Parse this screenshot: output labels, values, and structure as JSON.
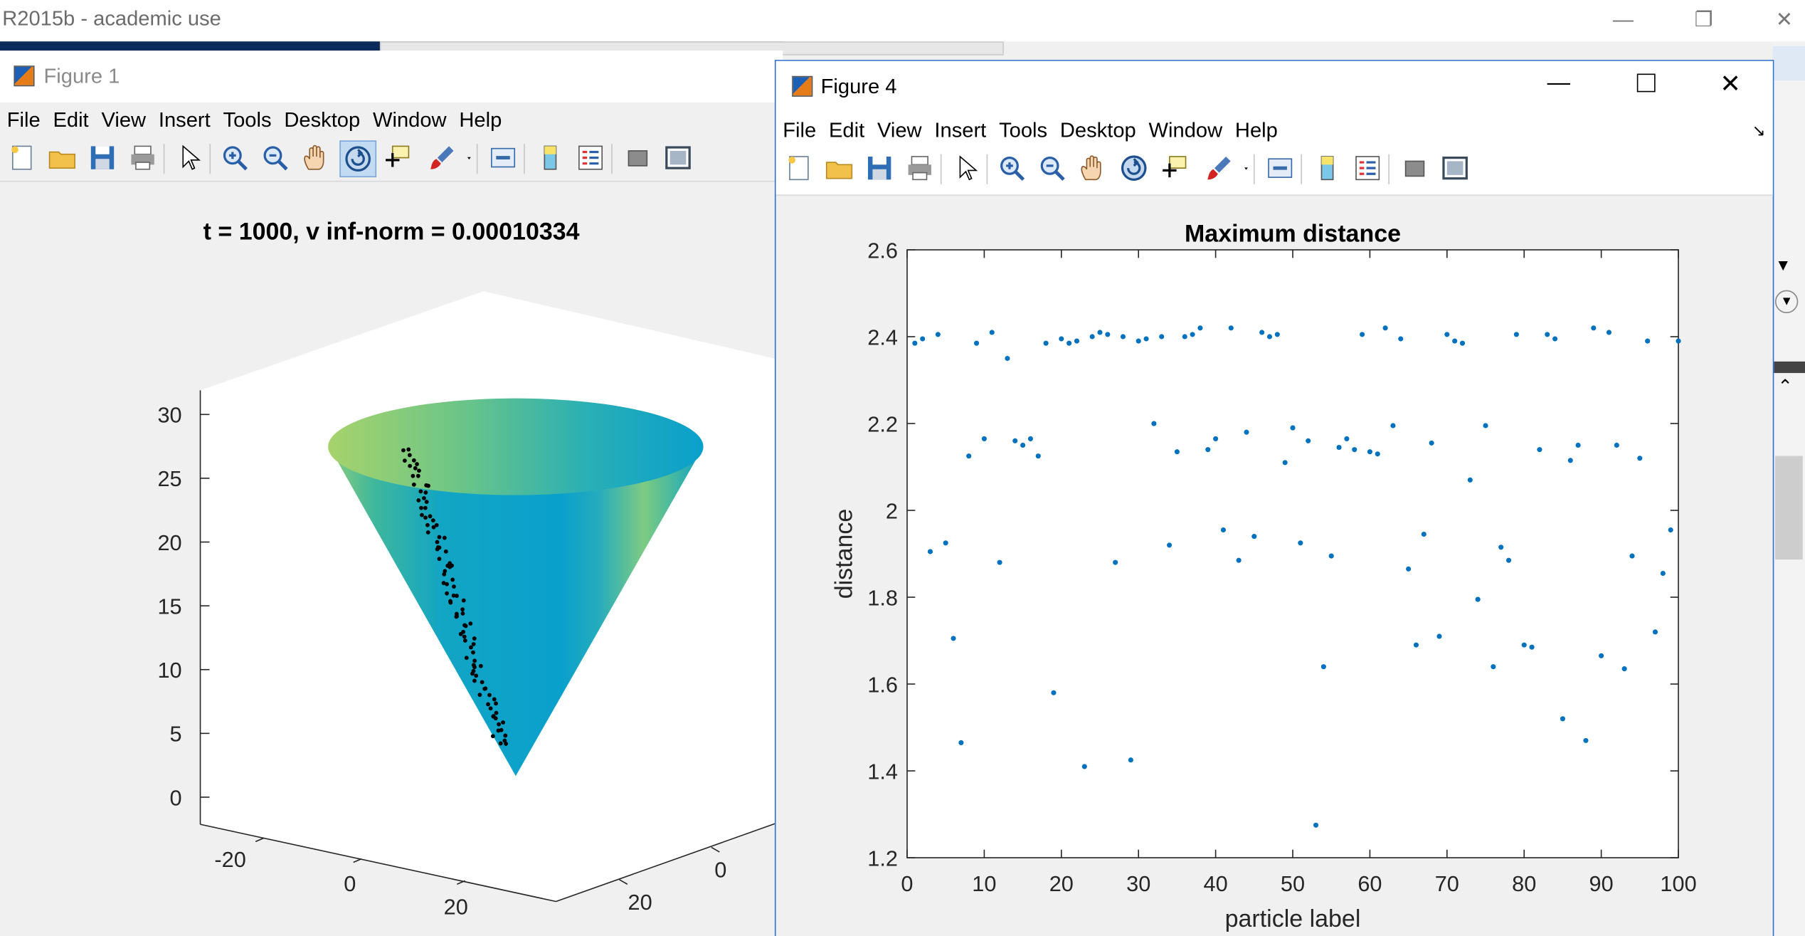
{
  "app": {
    "title": "R2015b - academic use"
  },
  "figure1": {
    "title": "Figure 1",
    "menu": [
      "File",
      "Edit",
      "View",
      "Insert",
      "Tools",
      "Desktop",
      "Window",
      "Help"
    ],
    "plot_title": "t = 1000, v inf-norm = 0.00010334",
    "z_ticks": [
      "30",
      "25",
      "20",
      "15",
      "10",
      "5",
      "0"
    ],
    "x_ticks": [
      "-20",
      "0",
      "20"
    ],
    "y_ticks": [
      "0",
      "20"
    ]
  },
  "figure4": {
    "title": "Figure 4",
    "menu": [
      "File",
      "Edit",
      "View",
      "Insert",
      "Tools",
      "Desktop",
      "Window",
      "Help"
    ]
  },
  "toolbar_icons": [
    "new-figure-icon",
    "open-file-icon",
    "save-icon",
    "print-icon",
    "select-arrow-icon",
    "zoom-in-icon",
    "zoom-out-icon",
    "pan-hand-icon",
    "rotate-3d-icon",
    "data-cursor-icon",
    "brush-icon",
    "brush-dropdown-icon",
    "link-plot-icon",
    "colorbar-icon",
    "legend-icon",
    "hide-plot-tools-icon",
    "show-plot-tools-icon"
  ],
  "chart_data": {
    "type": "scatter",
    "title": "Maximum distance",
    "xlabel": "particle label",
    "ylabel": "distance",
    "xlim": [
      0,
      100
    ],
    "ylim": [
      1.2,
      2.6
    ],
    "x_ticks": [
      0,
      10,
      20,
      30,
      40,
      50,
      60,
      70,
      80,
      90,
      100
    ],
    "y_ticks": [
      "1.2",
      "1.4",
      "1.6",
      "1.8",
      "2",
      "2.2",
      "2.4",
      "2.6"
    ],
    "color": "#0072bd",
    "series": [
      {
        "x": [
          1,
          2,
          3,
          4,
          5,
          6,
          7,
          8,
          9,
          10,
          11,
          12,
          13,
          14,
          15,
          16,
          17,
          18,
          19,
          20,
          21,
          22,
          23,
          24,
          25,
          26,
          27,
          28,
          29,
          30,
          31,
          32,
          33,
          34,
          35,
          36,
          37,
          38,
          39,
          40,
          41,
          42,
          43,
          44,
          45,
          46,
          47,
          48,
          49,
          50,
          51,
          52,
          53,
          54,
          55,
          56,
          57,
          58,
          59,
          60,
          61,
          62,
          63,
          64,
          65,
          66,
          67,
          68,
          69,
          70,
          71,
          72,
          73,
          74,
          75,
          76,
          77,
          78,
          79,
          80,
          81,
          82,
          83,
          84,
          85,
          86,
          87,
          88,
          89,
          90,
          91,
          92,
          93,
          94,
          95,
          96,
          97,
          98,
          99,
          100
        ],
        "y": [
          2.385,
          2.395,
          1.905,
          2.405,
          1.925,
          1.705,
          1.465,
          2.125,
          2.385,
          2.165,
          2.41,
          1.88,
          2.35,
          2.16,
          2.15,
          2.165,
          2.125,
          2.385,
          1.58,
          2.395,
          2.385,
          2.39,
          1.41,
          2.4,
          2.41,
          2.405,
          1.88,
          2.4,
          1.425,
          2.39,
          2.395,
          2.2,
          2.4,
          1.92,
          2.135,
          2.4,
          2.405,
          2.42,
          2.14,
          2.165,
          1.955,
          2.42,
          1.885,
          2.18,
          1.94,
          2.41,
          2.4,
          2.405,
          2.11,
          2.19,
          1.925,
          2.16,
          1.275,
          1.64,
          1.895,
          2.145,
          2.165,
          2.14,
          2.405,
          2.135,
          2.13,
          2.42,
          2.195,
          2.395,
          1.865,
          1.69,
          1.945,
          2.155,
          1.71,
          2.405,
          2.39,
          2.385,
          2.07,
          1.795,
          2.195,
          1.64,
          1.915,
          1.885,
          2.405,
          1.69,
          1.685,
          2.14,
          2.405,
          2.395,
          1.52,
          2.115,
          2.15,
          1.47,
          2.42,
          1.665,
          2.41,
          2.15,
          1.635,
          1.895,
          2.12,
          2.39,
          1.72,
          1.855,
          1.955,
          2.39
        ]
      }
    ]
  }
}
